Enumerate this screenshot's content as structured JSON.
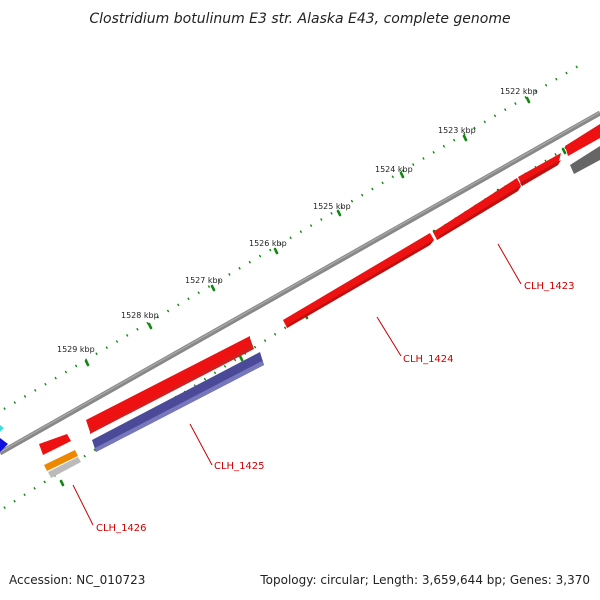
{
  "title": "Clostridium botulinum E3 str. Alaska E43, complete genome",
  "ticks": [
    "1522 kbp",
    "1523 kbp",
    "1524 kbp",
    "1525 kbp",
    "1526 kbp",
    "1527 kbp",
    "1528 kbp",
    "1529 kbp"
  ],
  "genes": [
    "CLH_1423",
    "CLH_1424",
    "CLH_1425",
    "CLH_1426"
  ],
  "footer": {
    "accession": "Accession: NC_010723",
    "summary": "Topology: circular; Length: 3,659,644 bp; Genes: 3,370"
  },
  "colors": {
    "backbone": "#888888",
    "feature_red": "#ee1111",
    "feature_purple": "#4a4a99",
    "feature_orange": "#ee8800",
    "feature_gray": "#bbbbbb",
    "feature_dark_gray": "#666666",
    "feature_blue": "#1111dd",
    "feature_cyan": "#44dddd",
    "tick_green": "#118811",
    "label_red": "#cc0000"
  }
}
